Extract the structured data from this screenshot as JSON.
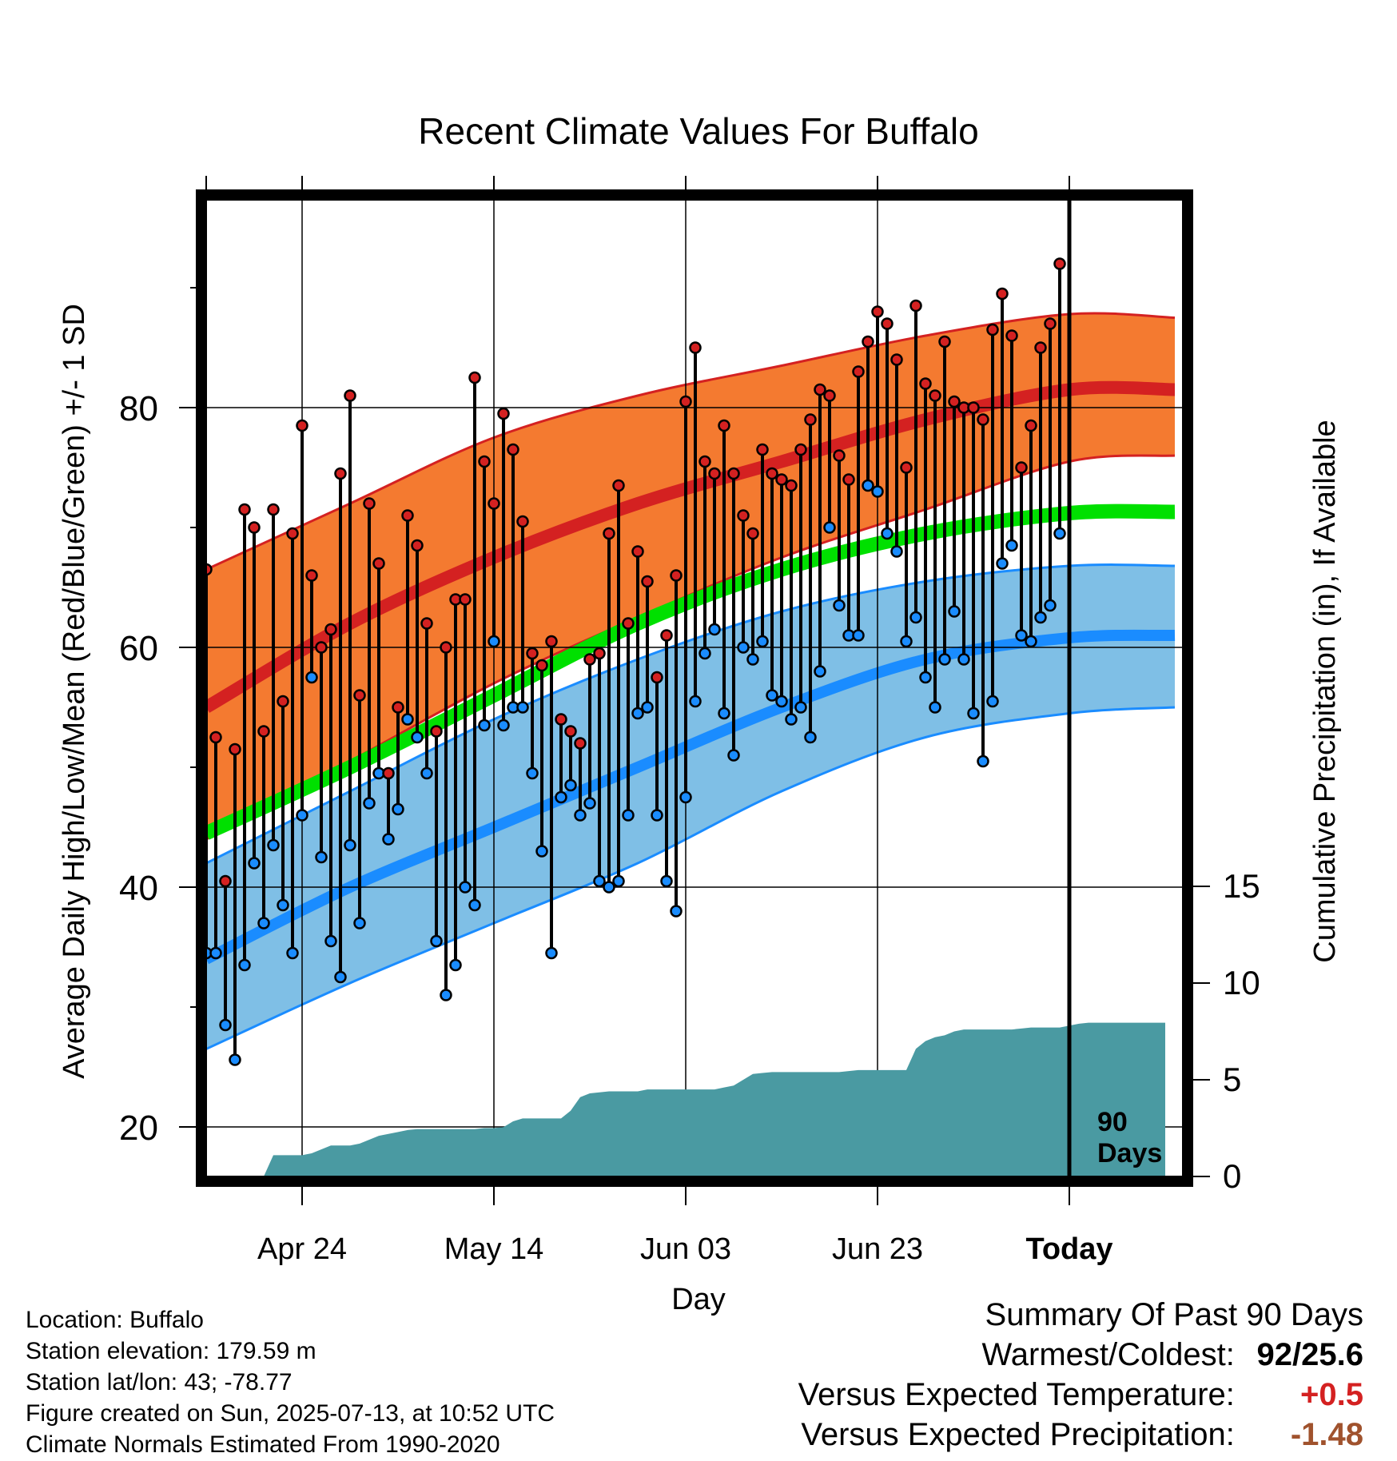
{
  "chart_data": {
    "type": "line",
    "title": "Recent Climate Values For Buffalo",
    "xlabel": "Day",
    "ylabel": "Average Daily High/Low/Mean (Red/Blue/Green) +/- 1 SD",
    "y2label": "Cumulative Precipitation (in), If Available",
    "x_ticks": [
      "Apr 24",
      "May 14",
      "Jun 03",
      "Jun 23",
      "Today"
    ],
    "y_ticks": [
      20,
      40,
      60,
      80
    ],
    "y2_ticks": [
      0,
      5,
      10,
      15
    ],
    "ylim": [
      16,
      98
    ],
    "y2lim": [
      0,
      15
    ],
    "today_label": "90 Days",
    "today_label_line1": "90",
    "today_label_line2": "Days",
    "colors": {
      "high_band": "#f47a30",
      "high_line": "#d42121",
      "low_band": "#7fbfe6",
      "low_line": "#1a8cff",
      "mean_line": "#00e000",
      "precip": "#4a9aa2",
      "high_marker": "#d42121",
      "low_marker": "#1a8cff"
    },
    "normals": {
      "day": [
        0,
        15,
        30,
        45,
        60,
        75,
        90,
        101
      ],
      "high_mean": [
        55,
        62,
        67.5,
        72,
        75.5,
        79,
        81.5,
        81.5
      ],
      "high_sd_upper": [
        66.5,
        72,
        77.5,
        81,
        83.5,
        86,
        87.8,
        87.5
      ],
      "high_sd_lower": [
        44,
        50.5,
        57,
        62.5,
        67.5,
        71.5,
        75.5,
        76
      ],
      "low_mean": [
        34,
        40,
        45,
        50,
        55,
        59,
        60.8,
        61
      ],
      "low_sd_upper": [
        42,
        48,
        54,
        59,
        63,
        65.5,
        66.8,
        66.8
      ],
      "low_sd_lower": [
        26.5,
        32,
        37,
        42,
        48,
        52.5,
        54.5,
        55
      ],
      "mean": [
        44.5,
        50,
        56,
        62,
        66.5,
        69.5,
        71.2,
        71.3
      ]
    },
    "series": [
      {
        "name": "High",
        "values": [
          66.5,
          52.5,
          40.5,
          51.5,
          71.5,
          70,
          53,
          71.5,
          55.5,
          69.5,
          78.5,
          66,
          60,
          61.5,
          74.5,
          81,
          56,
          72,
          67,
          49.5,
          55,
          71,
          68.5,
          62,
          53,
          60,
          64,
          64,
          82.5,
          75.5,
          72,
          79.5,
          76.5,
          70.5,
          59.5,
          58.5,
          60.5,
          54,
          53,
          52,
          59,
          59.5,
          69.5,
          73.5,
          62,
          68,
          65.5,
          57.5,
          61,
          66,
          80.5,
          85,
          75.5,
          74.5,
          78.5,
          74.5,
          71,
          69.5,
          76.5,
          74.5,
          74,
          73.5,
          76.5,
          79,
          81.5,
          81,
          76,
          74,
          83,
          85.5,
          88,
          87,
          84,
          75,
          88.5,
          82,
          81,
          85.5,
          80.5,
          80,
          80,
          79,
          86.5,
          89.5,
          86,
          75,
          78.5,
          85,
          87,
          92
        ]
      },
      {
        "name": "Low",
        "values": [
          34.5,
          34.5,
          28.5,
          25.6,
          33.5,
          42,
          37,
          43.5,
          38.5,
          34.5,
          46,
          57.5,
          42.5,
          35.5,
          32.5,
          43.5,
          37,
          47,
          49.5,
          44,
          46.5,
          54,
          52.5,
          49.5,
          35.5,
          31,
          33.5,
          40,
          38.5,
          53.5,
          60.5,
          53.5,
          55,
          55,
          49.5,
          43,
          34.5,
          47.5,
          48.5,
          46,
          47,
          40.5,
          40,
          40.5,
          46,
          54.5,
          55,
          46,
          40.5,
          38,
          47.5,
          55.5,
          59.5,
          61.5,
          54.5,
          51,
          60,
          59,
          60.5,
          56,
          55.5,
          54,
          55,
          52.5,
          58,
          70,
          63.5,
          61,
          61,
          73.5,
          73,
          69.5,
          68,
          60.5,
          62.5,
          57.5,
          55,
          59,
          63,
          59,
          54.5,
          50.5,
          55.5,
          67,
          68.5,
          61,
          60.5,
          62.5,
          63.5,
          69.5
        ]
      },
      {
        "name": "Cumulative Precipitation",
        "values": [
          0,
          0,
          0,
          0,
          0,
          0,
          0,
          1.1,
          1.1,
          1.1,
          1.1,
          1.2,
          1.4,
          1.6,
          1.6,
          1.6,
          1.7,
          1.9,
          2.1,
          2.2,
          2.3,
          2.4,
          2.45,
          2.45,
          2.45,
          2.45,
          2.45,
          2.45,
          2.45,
          2.5,
          2.5,
          2.55,
          2.85,
          3.0,
          3.0,
          3.0,
          3.0,
          3.0,
          3.4,
          4.1,
          4.3,
          4.35,
          4.4,
          4.4,
          4.4,
          4.4,
          4.5,
          4.5,
          4.5,
          4.5,
          4.5,
          4.5,
          4.5,
          4.5,
          4.6,
          4.7,
          5.0,
          5.3,
          5.35,
          5.4,
          5.4,
          5.4,
          5.4,
          5.4,
          5.4,
          5.4,
          5.4,
          5.45,
          5.5,
          5.5,
          5.5,
          5.5,
          5.5,
          5.5,
          6.6,
          7.0,
          7.2,
          7.3,
          7.5,
          7.6,
          7.6,
          7.6,
          7.6,
          7.6,
          7.6,
          7.65,
          7.7,
          7.7,
          7.7,
          7.7,
          7.8,
          7.9,
          7.95,
          7.95,
          7.95,
          7.95,
          7.95,
          7.95,
          7.95,
          7.95,
          7.95
        ]
      }
    ]
  },
  "info": {
    "location": "Location: Buffalo",
    "elevation": "Station elevation: 179.59 m",
    "latlon": "Station lat/lon: 43; -78.77",
    "created": "Figure created on Sun, 2025-07-13, at 10:52 UTC",
    "normals": "Climate Normals Estimated From 1990-2020"
  },
  "summary": {
    "title": "Summary Of Past 90 Days",
    "warm_cold_label": "Warmest/Coldest:",
    "warm_cold_value": "92/25.6",
    "temp_label": "Versus Expected Temperature:",
    "temp_value": "+0.5",
    "temp_color": "#d42121",
    "precip_label": "Versus Expected Precipitation:",
    "precip_value": "-1.48",
    "precip_color": "#a0522d"
  }
}
